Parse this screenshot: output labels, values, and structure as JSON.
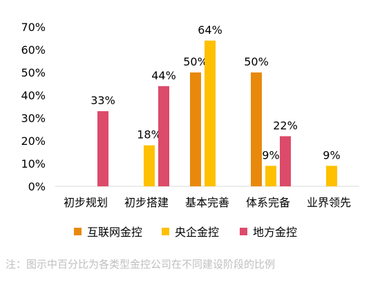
{
  "chart_data": {
    "type": "bar",
    "categories": [
      "初步规划",
      "初步搭建",
      "基本完善",
      "体系完备",
      "业界领先"
    ],
    "series": [
      {
        "name": "互联网金控",
        "color": "#E8890C",
        "values": [
          null,
          null,
          50,
          50,
          null
        ]
      },
      {
        "name": "央企金控",
        "color": "#FFC000",
        "values": [
          null,
          18,
          64,
          9,
          9
        ]
      },
      {
        "name": "地方金控",
        "color": "#DC4B6A",
        "values": [
          33,
          44,
          null,
          22,
          null
        ]
      }
    ],
    "ylim": [
      0,
      70
    ],
    "yticks": [
      "0%",
      "10%",
      "20%",
      "30%",
      "40%",
      "50%",
      "60%",
      "70%"
    ],
    "value_suffix": "%",
    "grid": false,
    "legend_position": "bottom",
    "title": "",
    "xlabel": "",
    "ylabel": ""
  },
  "note": "注：图示中百分比为各类型金控公司在不同建设阶段的比例"
}
